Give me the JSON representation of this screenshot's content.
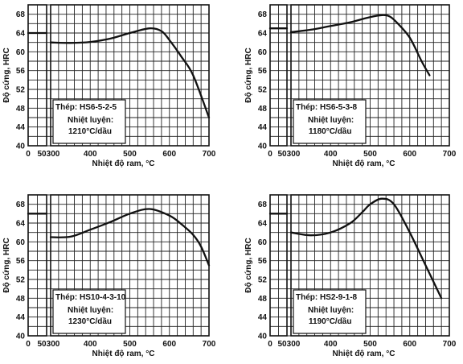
{
  "chart_data": [
    {
      "type": "line",
      "ylabel": "Độ cứng, HRC",
      "xlabel": "Nhiệt độ ram, °C",
      "x_ticks": [
        "0",
        "50",
        "300",
        "400",
        "500",
        "600",
        "700"
      ],
      "y_ticks": [
        "40",
        "44",
        "48",
        "52",
        "56",
        "60",
        "64",
        "68"
      ],
      "xlim": [
        300,
        700
      ],
      "ylim": [
        40,
        70
      ],
      "steel": "Thép: HS6-5-2-5",
      "treatment_label": "Nhiệt luyện:",
      "treatment": "1210°C/dầu",
      "as_quenched_hrc": 64,
      "x": [
        300,
        350,
        400,
        450,
        500,
        550,
        580,
        600,
        630,
        660,
        700
      ],
      "y": [
        62,
        61.9,
        62.1,
        62.8,
        64,
        65,
        64.4,
        62.5,
        59,
        55,
        46
      ]
    },
    {
      "type": "line",
      "ylabel": "Độ cứng, HRC",
      "xlabel": "Nhiệt độ ram, °C",
      "x_ticks": [
        "0",
        "50",
        "300",
        "400",
        "500",
        "600",
        "700"
      ],
      "y_ticks": [
        "40",
        "44",
        "48",
        "52",
        "56",
        "60",
        "64",
        "68"
      ],
      "xlim": [
        300,
        700
      ],
      "ylim": [
        40,
        70
      ],
      "steel": "Thép: HS6-5-3-8",
      "treatment_label": "Nhiệt luyện:",
      "treatment": "1180°C/dầu",
      "as_quenched_hrc": 65,
      "x": [
        300,
        350,
        400,
        450,
        500,
        530,
        550,
        570,
        600,
        630,
        650
      ],
      "y": [
        64.2,
        64.7,
        65.5,
        66.3,
        67.4,
        67.8,
        67.5,
        66,
        63,
        58,
        55
      ]
    },
    {
      "type": "line",
      "ylabel": "Độ cứng, HRC",
      "xlabel": "Nhiệt độ ram, °C",
      "x_ticks": [
        "0",
        "50",
        "300",
        "400",
        "500",
        "600",
        "700"
      ],
      "y_ticks": [
        "40",
        "44",
        "48",
        "52",
        "56",
        "60",
        "64",
        "68"
      ],
      "xlim": [
        300,
        700
      ],
      "ylim": [
        40,
        70
      ],
      "steel": "Thép: HS10-4-3-10",
      "treatment_label": "Nhiệt luyện:",
      "treatment": "1230°C/dầu",
      "as_quenched_hrc": 66,
      "x": [
        300,
        350,
        400,
        450,
        500,
        550,
        600,
        630,
        660,
        680,
        700
      ],
      "y": [
        61,
        61.1,
        62.6,
        64.2,
        66,
        67,
        65.6,
        63.8,
        61.5,
        59,
        55
      ]
    },
    {
      "type": "line",
      "ylabel": "Độ cứng, HRC",
      "xlabel": "Nhiệt độ ram, °C",
      "x_ticks": [
        "0",
        "50",
        "300",
        "400",
        "500",
        "600",
        "700"
      ],
      "y_ticks": [
        "40",
        "44",
        "48",
        "52",
        "56",
        "60",
        "64",
        "68"
      ],
      "xlim": [
        300,
        700
      ],
      "ylim": [
        40,
        70
      ],
      "steel": "Thép: HS2-9-1-8",
      "treatment_label": "Nhiệt luyện:",
      "treatment": "1190°C/dầu",
      "as_quenched_hrc": 66,
      "x": [
        300,
        350,
        400,
        450,
        480,
        500,
        530,
        560,
        600,
        640,
        680
      ],
      "y": [
        62,
        61.4,
        62,
        64,
        66.3,
        68,
        69.2,
        68,
        62,
        55,
        48
      ]
    }
  ]
}
